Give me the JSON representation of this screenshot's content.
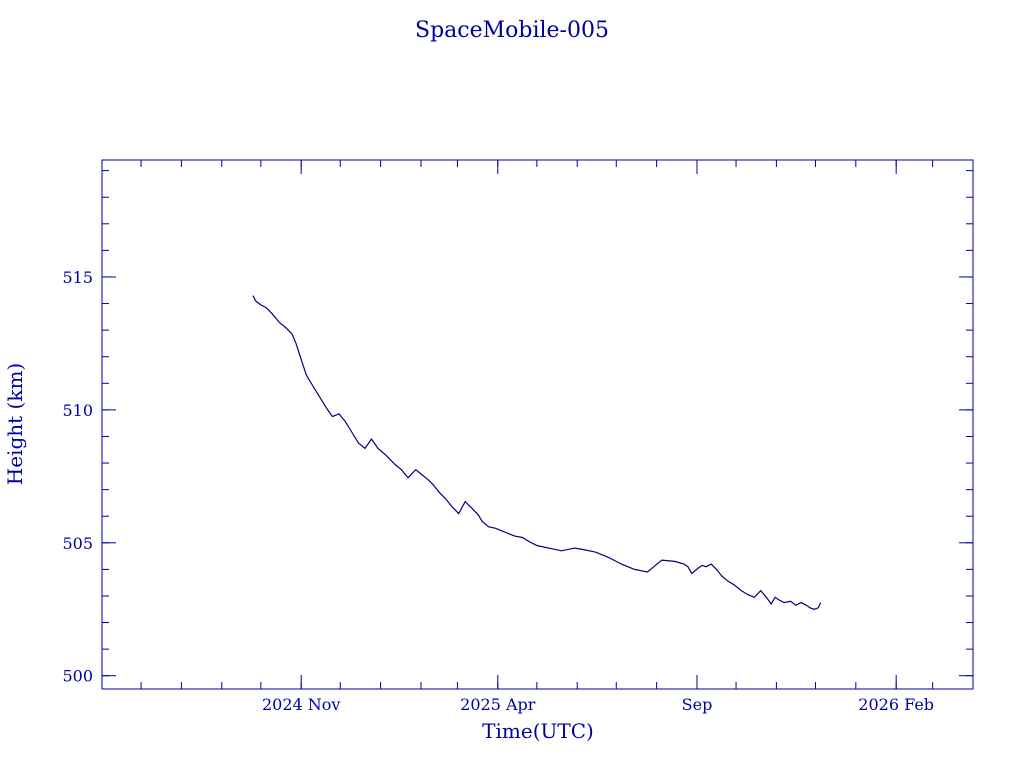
{
  "colors": {
    "axis": "#0000a0",
    "line": "#000080"
  },
  "chart_data": {
    "type": "line",
    "title": "SpaceMobile-005",
    "xlabel": "Time(UTC)",
    "ylabel": "Height (km)",
    "ylim": [
      499.5,
      519.4
    ],
    "xlim": [
      "2024-06-01",
      "2026-04-01"
    ],
    "grid": false,
    "y_ticks": [
      {
        "value": 500,
        "label": "500"
      },
      {
        "value": 505,
        "label": "505"
      },
      {
        "value": 510,
        "label": "510"
      },
      {
        "value": 515,
        "label": "515"
      }
    ],
    "x_ticks": [
      {
        "value": "2024-11-01",
        "label": "2024 Nov"
      },
      {
        "value": "2025-04-01",
        "label": "2025 Apr"
      },
      {
        "value": "2025-09-01",
        "label": "Sep"
      },
      {
        "value": "2026-02-01",
        "label": "2026 Feb"
      }
    ],
    "series": [
      {
        "x": [
          "2024-09-25",
          "2024-09-27",
          "2024-10-01",
          "2024-10-05",
          "2024-10-10",
          "2024-10-15",
          "2024-10-20",
          "2024-10-25",
          "2024-10-28",
          "2024-11-01",
          "2024-11-05",
          "2024-11-10",
          "2024-11-15",
          "2024-11-20",
          "2024-11-25",
          "2024-11-30",
          "2024-12-05",
          "2024-12-10",
          "2024-12-15",
          "2024-12-20",
          "2024-12-25",
          "2024-12-30",
          "2025-01-05",
          "2025-01-08",
          "2025-01-12",
          "2025-01-17",
          "2025-01-22",
          "2025-01-28",
          "2025-02-02",
          "2025-02-07",
          "2025-02-10",
          "2025-02-15",
          "2025-02-20",
          "2025-02-25",
          "2025-03-02",
          "2025-03-07",
          "2025-03-12",
          "2025-03-17",
          "2025-03-20",
          "2025-03-25",
          "2025-03-30",
          "2025-04-04",
          "2025-04-09",
          "2025-04-14",
          "2025-04-20",
          "2025-04-25",
          "2025-05-01",
          "2025-05-10",
          "2025-05-20",
          "2025-05-30",
          "2025-06-05",
          "2025-06-15",
          "2025-06-25",
          "2025-07-05",
          "2025-07-15",
          "2025-07-25",
          "2025-08-05",
          "2025-08-15",
          "2025-08-22",
          "2025-08-25",
          "2025-08-28",
          "2025-09-02",
          "2025-09-05",
          "2025-09-08",
          "2025-09-12",
          "2025-09-16",
          "2025-09-20",
          "2025-09-25",
          "2025-09-30",
          "2025-10-05",
          "2025-10-10",
          "2025-10-15",
          "2025-10-20",
          "2025-10-25",
          "2025-10-28",
          "2025-10-31",
          "2025-11-03",
          "2025-11-07",
          "2025-11-12",
          "2025-11-16",
          "2025-11-20",
          "2025-11-24",
          "2025-11-27",
          "2025-11-30",
          "2025-12-03",
          "2025-12-05"
        ],
        "values": [
          514.3,
          514.1,
          513.95,
          513.85,
          513.6,
          513.3,
          513.1,
          512.85,
          512.5,
          511.9,
          511.3,
          510.9,
          510.5,
          510.1,
          509.75,
          509.85,
          509.55,
          509.15,
          508.75,
          508.55,
          508.9,
          508.55,
          508.3,
          508.15,
          507.95,
          507.75,
          507.45,
          507.75,
          507.55,
          507.35,
          507.2,
          506.9,
          506.65,
          506.35,
          506.1,
          506.55,
          506.3,
          506.05,
          505.8,
          505.6,
          505.55,
          505.45,
          505.35,
          505.25,
          505.2,
          505.05,
          504.9,
          504.8,
          504.7,
          504.8,
          504.75,
          504.65,
          504.45,
          504.2,
          504.0,
          503.9,
          504.35,
          504.3,
          504.2,
          504.1,
          503.85,
          504.05,
          504.15,
          504.1,
          504.2,
          504.0,
          503.75,
          503.55,
          503.4,
          503.2,
          503.05,
          502.95,
          503.2,
          502.9,
          502.7,
          502.95,
          502.85,
          502.75,
          502.8,
          502.65,
          502.75,
          502.65,
          502.55,
          502.5,
          502.55,
          502.75
        ]
      }
    ]
  }
}
